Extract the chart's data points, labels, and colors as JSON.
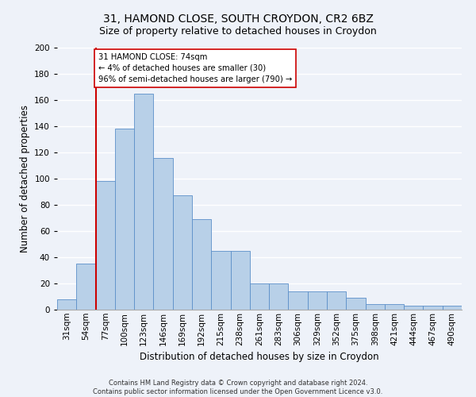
{
  "title1": "31, HAMOND CLOSE, SOUTH CROYDON, CR2 6BZ",
  "title2": "Size of property relative to detached houses in Croydon",
  "xlabel": "Distribution of detached houses by size in Croydon",
  "ylabel": "Number of detached properties",
  "categories": [
    "31sqm",
    "54sqm",
    "77sqm",
    "100sqm",
    "123sqm",
    "146sqm",
    "169sqm",
    "192sqm",
    "215sqm",
    "238sqm",
    "261sqm",
    "283sqm",
    "306sqm",
    "329sqm",
    "352sqm",
    "375sqm",
    "398sqm",
    "421sqm",
    "444sqm",
    "467sqm",
    "490sqm"
  ],
  "values": [
    8,
    35,
    98,
    138,
    165,
    116,
    87,
    69,
    45,
    45,
    20,
    20,
    14,
    14,
    14,
    9,
    4,
    4,
    3,
    3,
    3
  ],
  "bar_color": "#b8d0e8",
  "bar_edge_color": "#5b8fc9",
  "vline_x_idx": 2,
  "vline_color": "#cc0000",
  "annotation_text": "31 HAMOND CLOSE: 74sqm\n← 4% of detached houses are smaller (30)\n96% of semi-detached houses are larger (790) →",
  "annotation_box_color": "#ffffff",
  "annotation_box_edge": "#cc0000",
  "footer": "Contains HM Land Registry data © Crown copyright and database right 2024.\nContains public sector information licensed under the Open Government Licence v3.0.",
  "ylim": [
    0,
    200
  ],
  "yticks": [
    0,
    20,
    40,
    60,
    80,
    100,
    120,
    140,
    160,
    180,
    200
  ],
  "bg_color": "#eef2f9",
  "grid_color": "#ffffff",
  "title1_fontsize": 10,
  "title2_fontsize": 9,
  "xlabel_fontsize": 8.5,
  "ylabel_fontsize": 8.5,
  "tick_fontsize": 7.5,
  "footer_fontsize": 6.0
}
